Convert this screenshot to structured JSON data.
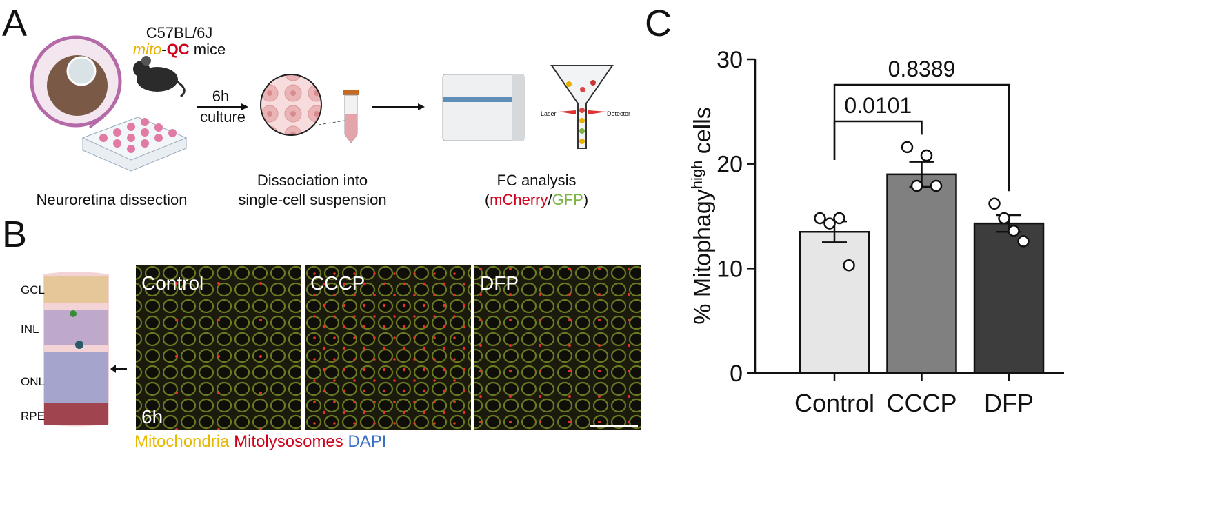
{
  "panel_a": {
    "label": "A",
    "strain": "C57BL/6J",
    "mouse": [
      "mito",
      "-",
      "QC",
      " mice"
    ],
    "arrow_label": [
      "6h",
      "culture"
    ],
    "step_1": "Neuroretina dissection",
    "step_2": [
      "Dissociation into",
      "single-cell suspension"
    ],
    "step_3": "FC analysis",
    "channels": [
      "(",
      "mCherry",
      "/",
      "GFP",
      ")"
    ],
    "laser": "Laser",
    "detector": "Detector"
  },
  "panel_b": {
    "label": "B",
    "layers": [
      "GCL",
      "INL",
      "ONL",
      "RPE"
    ],
    "conditions": [
      "Control",
      "CCCP",
      "DFP"
    ],
    "time": "6h",
    "legend": [
      "Mitochondria",
      " Mitolysosomes",
      " DAPI"
    ]
  },
  "chart_data": {
    "type": "bar",
    "label": "C",
    "y_label": [
      "% Mitophagy",
      "high",
      " cells"
    ],
    "categories": [
      "Control",
      "CCCP",
      "DFP"
    ],
    "values": [
      13.5,
      19.0,
      14.3
    ],
    "errors": [
      1.0,
      1.2,
      0.8
    ],
    "colors": [
      "#e6e6e6",
      "#808080",
      "#3d3d3d"
    ],
    "points": [
      [
        14.8,
        14.3,
        14.8,
        10.3
      ],
      [
        21.6,
        17.9,
        20.8,
        17.9
      ],
      [
        16.2,
        14.8,
        13.6,
        12.6
      ]
    ],
    "comparisons": [
      {
        "groups": [
          0,
          1
        ],
        "p": 0.0101
      },
      {
        "groups": [
          0,
          2
        ],
        "p": 0.8389
      }
    ],
    "ylim": [
      0,
      30
    ],
    "yticks": [
      0,
      10,
      20,
      30
    ]
  }
}
